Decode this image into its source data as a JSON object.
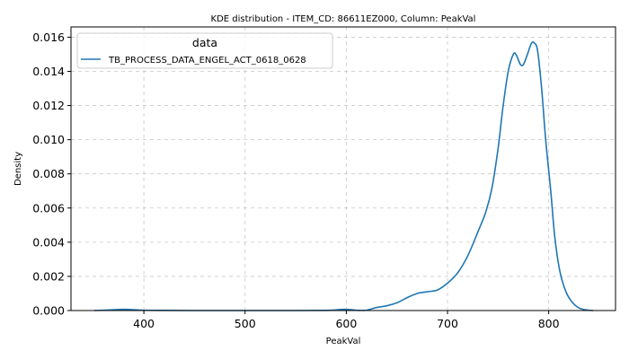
{
  "chart_data": {
    "type": "line",
    "title": "KDE distribution - ITEM_CD: 86611EZ000, Column: PeakVal",
    "xlabel": "PeakVal",
    "ylabel": "Density",
    "xlim": [
      328,
      866
    ],
    "ylim": [
      0,
      0.0166
    ],
    "x_ticks": [
      400,
      500,
      600,
      700,
      800
    ],
    "y_ticks": [
      0.0,
      0.002,
      0.004,
      0.006,
      0.008,
      0.01,
      0.012,
      0.014,
      0.016
    ],
    "x_tick_labels": [
      "400",
      "500",
      "600",
      "700",
      "800"
    ],
    "y_tick_labels": [
      "0.000",
      "0.002",
      "0.004",
      "0.006",
      "0.008",
      "0.010",
      "0.012",
      "0.014",
      "0.016"
    ],
    "grid": true,
    "legend": {
      "title": "data",
      "placement": "upper-left",
      "entries": [
        "TB_PROCESS_DATA_ENGEL_ACT_0618_0628"
      ]
    },
    "series": [
      {
        "name": "TB_PROCESS_DATA_ENGEL_ACT_0618_0628",
        "color": "#1f77b4",
        "points": [
          [
            351,
            0.0
          ],
          [
            365,
            3e-05
          ],
          [
            380,
            7e-05
          ],
          [
            390,
            5e-05
          ],
          [
            400,
            2e-05
          ],
          [
            420,
            1e-05
          ],
          [
            450,
            0.0
          ],
          [
            500,
            0.0
          ],
          [
            550,
            0.0
          ],
          [
            580,
            1e-05
          ],
          [
            590,
            4e-05
          ],
          [
            598,
            7e-05
          ],
          [
            605,
            5e-05
          ],
          [
            612,
            1e-05
          ],
          [
            620,
            2e-05
          ],
          [
            630,
            0.00018
          ],
          [
            640,
            0.00028
          ],
          [
            650,
            0.00045
          ],
          [
            660,
            0.00075
          ],
          [
            670,
            0.001
          ],
          [
            680,
            0.0011
          ],
          [
            690,
            0.0012
          ],
          [
            700,
            0.0016
          ],
          [
            710,
            0.0022
          ],
          [
            720,
            0.0032
          ],
          [
            730,
            0.0046
          ],
          [
            738,
            0.0058
          ],
          [
            744,
            0.0072
          ],
          [
            750,
            0.0095
          ],
          [
            755,
            0.012
          ],
          [
            760,
            0.014
          ],
          [
            765,
            0.015
          ],
          [
            768,
            0.01495
          ],
          [
            772,
            0.0144
          ],
          [
            775,
            0.0144
          ],
          [
            779,
            0.015
          ],
          [
            783,
            0.01565
          ],
          [
            786,
            0.01565
          ],
          [
            789,
            0.0152
          ],
          [
            793,
            0.013
          ],
          [
            797,
            0.01
          ],
          [
            802,
            0.007
          ],
          [
            806,
            0.0043
          ],
          [
            811,
            0.0023
          ],
          [
            817,
            0.0011
          ],
          [
            823,
            0.0005
          ],
          [
            830,
            0.00015
          ],
          [
            837,
            4e-05
          ],
          [
            844,
            0.0
          ]
        ]
      }
    ]
  }
}
